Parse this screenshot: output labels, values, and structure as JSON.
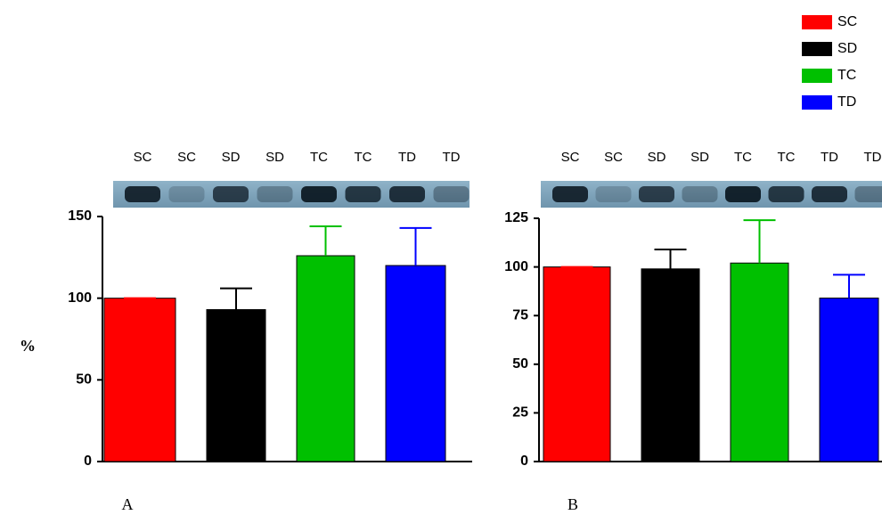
{
  "legend": [
    {
      "name": "SC",
      "color": "#ff0000"
    },
    {
      "name": "SD",
      "color": "#000000"
    },
    {
      "name": "TC",
      "color": "#00c000"
    },
    {
      "name": "TD",
      "color": "#0000ff"
    }
  ],
  "chart_data": [
    {
      "type": "bar",
      "panel": "A",
      "ylabel": "%",
      "lanes": [
        "SC",
        "SC",
        "SD",
        "SD",
        "TC",
        "TC",
        "TD",
        "TD"
      ],
      "values": [
        100,
        93,
        126,
        120
      ],
      "errors": [
        0,
        13,
        18,
        23
      ],
      "ylim": [
        0,
        150
      ],
      "yticks": [
        0,
        50,
        100,
        150
      ]
    },
    {
      "type": "bar",
      "panel": "B",
      "lanes": [
        "SC",
        "SC",
        "SD",
        "SD",
        "TC",
        "TC",
        "TD",
        "TD"
      ],
      "values": [
        100,
        99,
        102,
        84
      ],
      "errors": [
        0,
        10,
        22,
        12
      ],
      "ylim": [
        0,
        125
      ],
      "yticks": [
        0,
        25,
        50,
        75,
        100,
        125
      ]
    }
  ]
}
